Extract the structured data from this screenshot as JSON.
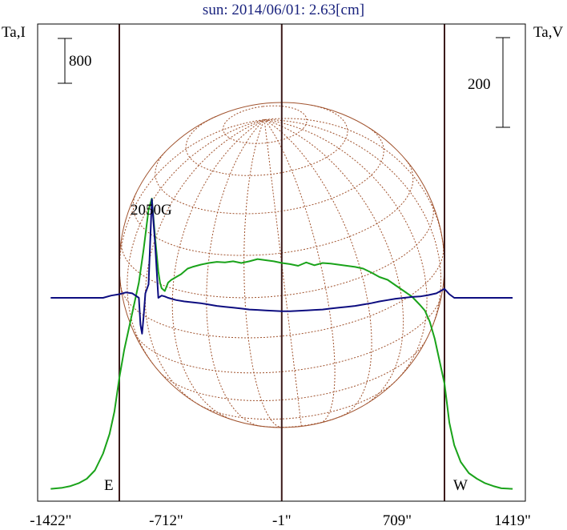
{
  "title": "sun: 2014/06/01: 2.63[cm]",
  "axis_labels": {
    "left": "Ta,I",
    "right": "Ta,V"
  },
  "scale_bars": {
    "left": "800",
    "right": "200"
  },
  "limb_labels": {
    "east": "E",
    "west": "W"
  },
  "annotation": "2050G",
  "colors": {
    "intensity": "#1aa31a",
    "polarization": "#0d0d80",
    "disk_grid": "#a0522d",
    "frame": "#000000",
    "verticals": "#3b1a1a",
    "title": "#1a237e"
  },
  "chart_data": {
    "type": "line",
    "title": "sun: 2014/06/01: 2.63[cm]",
    "xticks": [
      {
        "value": -1422,
        "label": "-1422\""
      },
      {
        "value": -712,
        "label": "-712\""
      },
      {
        "value": -1,
        "label": "-1\""
      },
      {
        "value": 709,
        "label": "709\""
      },
      {
        "value": 1419,
        "label": "1419\""
      }
    ],
    "xlim": [
      -1422,
      1419
    ],
    "vertical_lines": [
      -1000,
      -1,
      1000
    ],
    "disk": {
      "center_x": 0,
      "radius": 1000
    },
    "scale_bars": [
      {
        "axis": "left",
        "value": 800
      },
      {
        "axis": "right",
        "value": 200
      }
    ],
    "series": [
      {
        "name": "Ta,I",
        "axis": "left",
        "x": [
          -1422,
          -1350,
          -1300,
          -1250,
          -1200,
          -1150,
          -1100,
          -1060,
          -1030,
          -1000,
          -970,
          -940,
          -910,
          -880,
          -850,
          -820,
          -800,
          -780,
          -760,
          -750,
          -740,
          -720,
          -700,
          -680,
          -650,
          -620,
          -600,
          -580,
          -550,
          -500,
          -450,
          -400,
          -350,
          -300,
          -250,
          -200,
          -150,
          -100,
          -50,
          0,
          50,
          100,
          150,
          200,
          250,
          300,
          350,
          400,
          450,
          500,
          550,
          600,
          650,
          700,
          750,
          800,
          850,
          880,
          910,
          940,
          970,
          1000,
          1030,
          1060,
          1100,
          1150,
          1200,
          1250,
          1300,
          1350,
          1419
        ],
        "y": [
          20,
          40,
          70,
          120,
          200,
          350,
          650,
          1000,
          1400,
          2000,
          2500,
          2900,
          3300,
          3700,
          4300,
          5000,
          5200,
          4500,
          3900,
          3700,
          3600,
          3550,
          3700,
          3750,
          3800,
          3850,
          3900,
          3950,
          3980,
          4020,
          4050,
          4070,
          4060,
          4080,
          4050,
          4080,
          4120,
          4100,
          4080,
          4050,
          4030,
          4000,
          4060,
          4010,
          4050,
          4040,
          4020,
          4000,
          3980,
          3950,
          3880,
          3800,
          3750,
          3650,
          3550,
          3450,
          3300,
          3200,
          3000,
          2700,
          2300,
          1900,
          1200,
          800,
          500,
          300,
          200,
          120,
          70,
          30,
          20
        ]
      },
      {
        "name": "Ta,V",
        "axis": "right",
        "x": [
          -1422,
          -1350,
          -1300,
          -1250,
          -1200,
          -1150,
          -1100,
          -1050,
          -1000,
          -960,
          -920,
          -900,
          -880,
          -870,
          -860,
          -850,
          -840,
          -820,
          -800,
          -780,
          -760,
          -740,
          -720,
          -700,
          -650,
          -600,
          -550,
          -500,
          -450,
          -400,
          -350,
          -300,
          -250,
          -200,
          -150,
          -100,
          -50,
          0,
          50,
          100,
          150,
          200,
          250,
          300,
          350,
          400,
          450,
          500,
          550,
          600,
          650,
          700,
          750,
          800,
          850,
          900,
          950,
          1000,
          1030,
          1060,
          1100,
          1150,
          1200,
          1250,
          1300,
          1350,
          1419
        ],
        "y": [
          0,
          0,
          0,
          0,
          0,
          0,
          0,
          5,
          8,
          12,
          10,
          5,
          0,
          -60,
          -80,
          -40,
          10,
          30,
          220,
          120,
          0,
          5,
          3,
          0,
          -5,
          -8,
          -10,
          -12,
          -15,
          -18,
          -20,
          -22,
          -24,
          -26,
          -27,
          -28,
          -29,
          -30,
          -30,
          -29,
          -28,
          -27,
          -26,
          -24,
          -22,
          -20,
          -18,
          -15,
          -12,
          -8,
          -5,
          -2,
          0,
          2,
          3,
          6,
          10,
          20,
          8,
          0,
          0,
          0,
          0,
          0,
          0,
          0,
          0
        ]
      }
    ]
  }
}
